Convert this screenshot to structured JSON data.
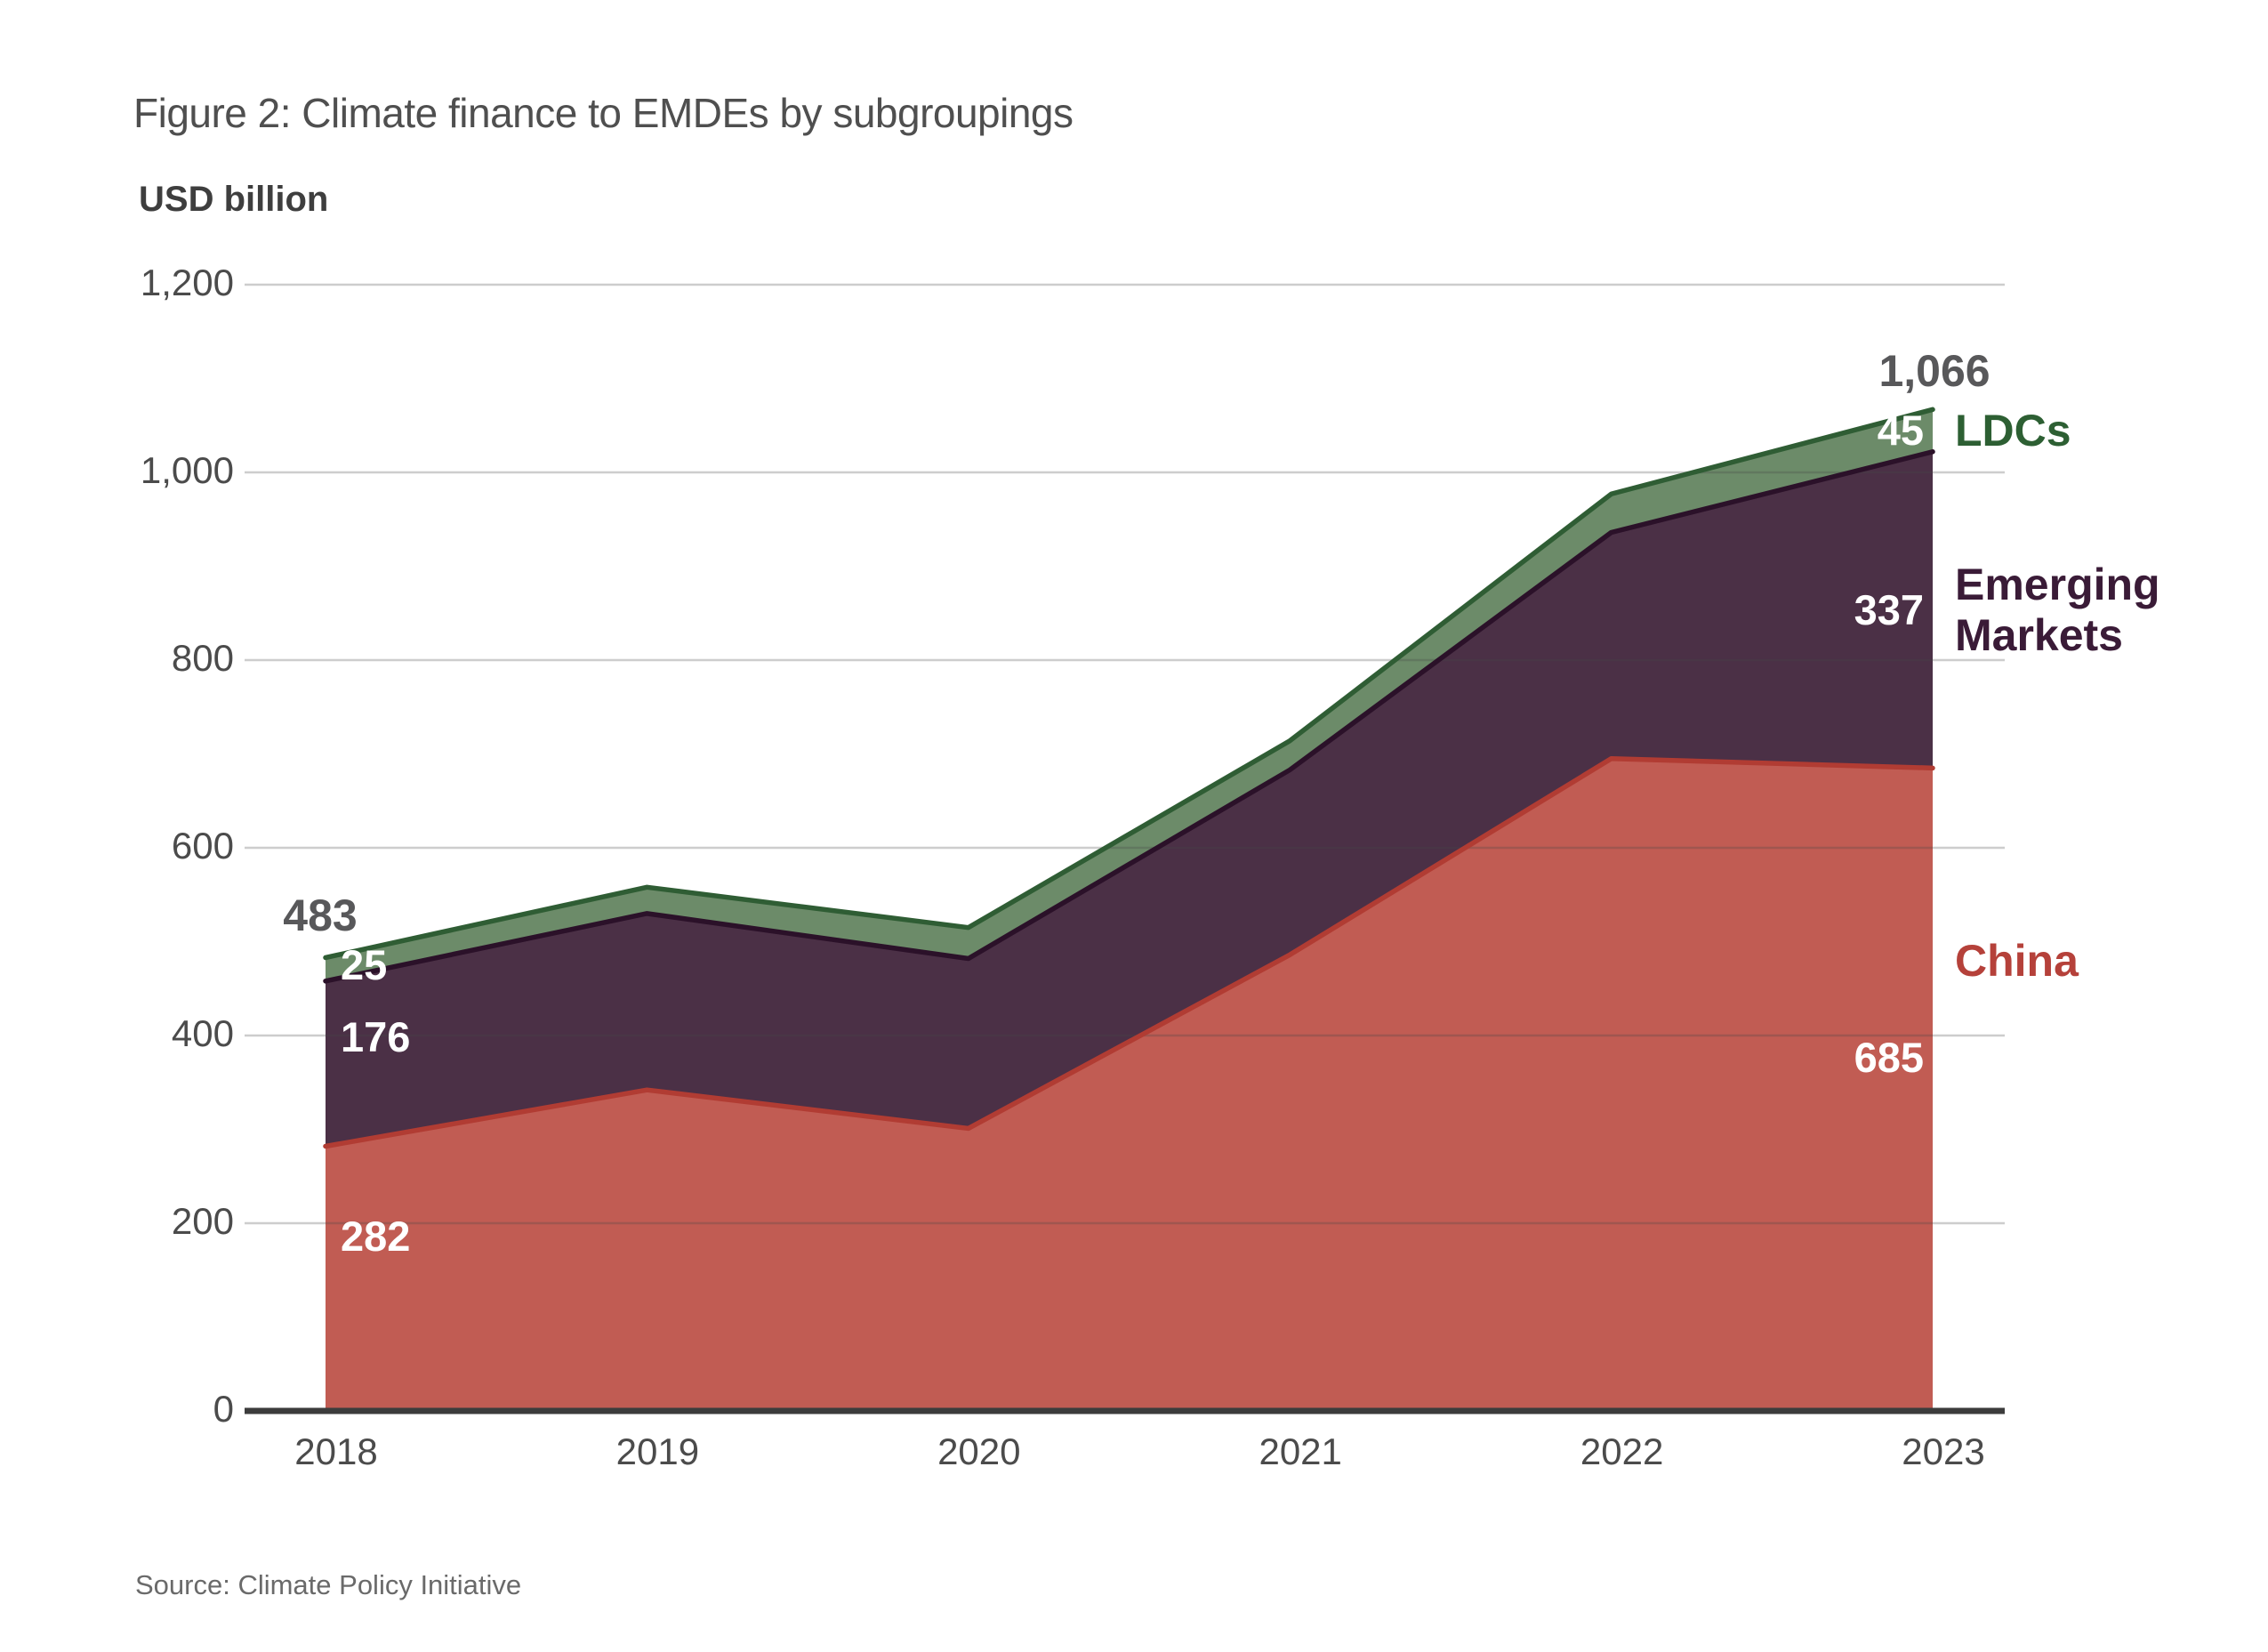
{
  "header": {
    "title": "Figure 2: Climate finance to EMDEs by subgroupings",
    "unit_label": "USD billion"
  },
  "footer": {
    "source": "Source: Climate Policy Initiative"
  },
  "chart_data": {
    "type": "area",
    "stacked": true,
    "title": "Figure 2: Climate finance to EMDEs by subgroupings",
    "ylabel": "USD billion",
    "xlabel": "",
    "categories": [
      "2018",
      "2019",
      "2020",
      "2021",
      "2022",
      "2023"
    ],
    "series": [
      {
        "name": "China",
        "values": [
          282,
          342,
          301,
          486,
          695,
          685
        ],
        "fill": "#C15C53",
        "stroke": "#B13C33",
        "text_color": "#B5413A",
        "label_lines": [
          "China"
        ]
      },
      {
        "name": "Emerging Markets",
        "values": [
          176,
          188,
          181,
          197,
          241,
          337
        ],
        "fill": "#4B3046",
        "stroke": "#2B1129",
        "text_color": "#3A1B37",
        "label_lines": [
          "Emerging",
          "Markets"
        ]
      },
      {
        "name": "LDCs",
        "values": [
          25,
          28,
          33,
          31,
          41,
          45
        ],
        "fill": "#6C8B69",
        "stroke": "#2F5D34",
        "text_color": "#2D5F33",
        "label_lines": [
          "LDCs"
        ]
      }
    ],
    "ylim": [
      0,
      1200
    ],
    "ytick_values": [
      0,
      200,
      400,
      600,
      800,
      1000,
      1200
    ],
    "yticks": [
      "0",
      "200",
      "400",
      "600",
      "800",
      "1,000",
      "1,200"
    ],
    "grid": "horizontal",
    "legend_position": "right",
    "annotations": {
      "total_first": "483",
      "total_last": "1,066",
      "first_year_value_labels": [
        "282",
        "176",
        "25"
      ],
      "last_year_value_labels": [
        "685",
        "337",
        "45"
      ]
    }
  }
}
